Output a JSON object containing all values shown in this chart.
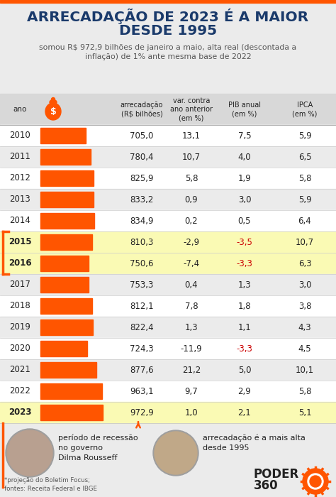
{
  "title_line1": "ARRECADAÇÃO DE 2023 É A MAIOR",
  "title_line2": "DESDE 1995",
  "subtitle": "somou R$ 972,9 bilhões de janeiro a maio, alta real (descontada a\ninflação) de 1% ante mesma base de 2022",
  "years": [
    2010,
    2011,
    2012,
    2013,
    2014,
    2015,
    2016,
    2017,
    2018,
    2019,
    2020,
    2021,
    2022,
    2023
  ],
  "arrecadacao": [
    705.0,
    780.4,
    825.9,
    833.2,
    834.9,
    810.3,
    750.6,
    753.3,
    812.1,
    822.4,
    724.3,
    877.6,
    963.1,
    972.9
  ],
  "var_ano_anterior": [
    "13,1",
    "10,7",
    "5,8",
    "0,9",
    "0,2",
    "-2,9",
    "-7,4",
    "0,4",
    "7,8",
    "1,3",
    "-11,9",
    "21,2",
    "9,7",
    "1,0"
  ],
  "pib_anual": [
    "7,5",
    "4,0",
    "1,9",
    "3,0",
    "0,5",
    "-3,5",
    "-3,3",
    "1,3",
    "1,8",
    "1,1",
    "-3,3",
    "5,0",
    "2,9",
    "2,1"
  ],
  "ipca": [
    "5,9",
    "6,5",
    "5,8",
    "5,9",
    "6,4",
    "10,7",
    "6,3",
    "3,0",
    "3,8",
    "4,3",
    "4,5",
    "10,1",
    "5,8",
    "5,1"
  ],
  "pib_red": [
    false,
    false,
    false,
    false,
    false,
    true,
    true,
    false,
    false,
    false,
    true,
    false,
    false,
    false
  ],
  "bar_color": "#FF5500",
  "highlight_bg": "#FAFAB4",
  "highlight_years": [
    2015,
    2016,
    2023
  ],
  "title_color": "#1a3a6b",
  "text_dark": "#222222",
  "text_gray": "#555555",
  "red_color": "#CC0000",
  "bg_light": "#EBEBEB",
  "bg_white": "#FFFFFF",
  "bg_header": "#D8D8D8",
  "orange": "#FF5500",
  "col_header_ano": "ano",
  "col_header1": "arrecadação\n(R$ bilhões)",
  "col_header2": "var. contra\nano anterior\n(em %)",
  "col_header3": "PIB anual\n(em %)",
  "col_header4": "IPCA\n(em %)",
  "footer_text2": "período de recessão\nno governo\nDilma Rousseff",
  "footer_text3": "arrecadação é a mais alta\ndesde 1995",
  "footer_note": "*projeção do Boletim Focus;\nfontes: Receita Federal e IBGE"
}
